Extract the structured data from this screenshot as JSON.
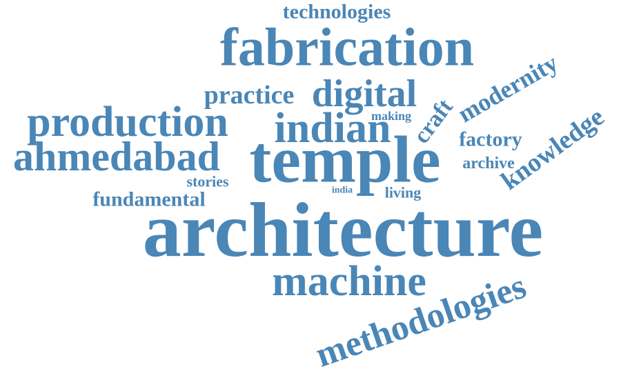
{
  "color": "#4a86b6",
  "words": [
    {
      "key": "technologies",
      "text": "technologies"
    },
    {
      "key": "fabrication",
      "text": "fabrication"
    },
    {
      "key": "modernity",
      "text": "modernity"
    },
    {
      "key": "practice",
      "text": "practice"
    },
    {
      "key": "digital",
      "text": "digital"
    },
    {
      "key": "craft",
      "text": "craft"
    },
    {
      "key": "making",
      "text": "making"
    },
    {
      "key": "production",
      "text": "production"
    },
    {
      "key": "indian",
      "text": "indian"
    },
    {
      "key": "knowledge",
      "text": "knowledge"
    },
    {
      "key": "factory",
      "text": "factory"
    },
    {
      "key": "ahmedabad",
      "text": "ahmedabad"
    },
    {
      "key": "temple",
      "text": "temple"
    },
    {
      "key": "archive",
      "text": "archive"
    },
    {
      "key": "stories",
      "text": "stories"
    },
    {
      "key": "india",
      "text": "india"
    },
    {
      "key": "living",
      "text": "living"
    },
    {
      "key": "fundamental",
      "text": "fundamental"
    },
    {
      "key": "architecture",
      "text": "architecture"
    },
    {
      "key": "machine",
      "text": "machine"
    },
    {
      "key": "methodologies",
      "text": "methodologies"
    }
  ]
}
